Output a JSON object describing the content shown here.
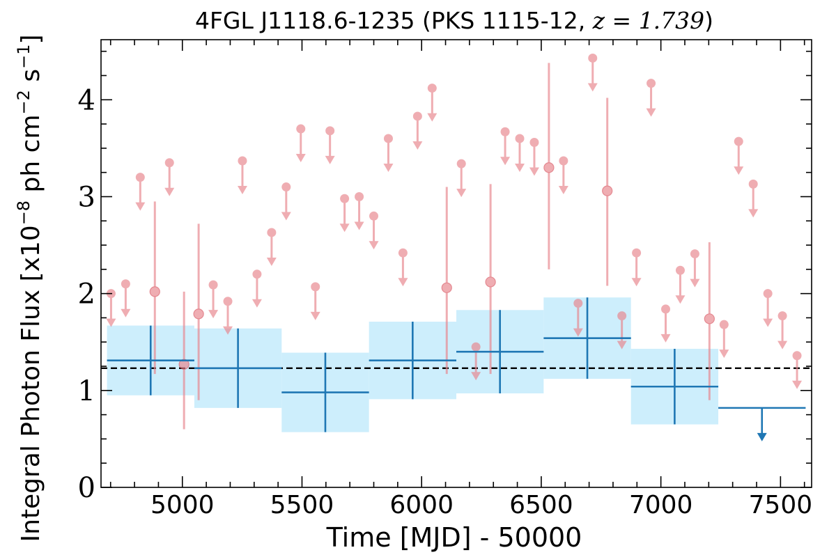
{
  "chart_data": {
    "type": "scatter",
    "title_main": "4FGL J1118.6-1235 (PKS 1115-12, ",
    "title_z": "z = 1.739",
    "title_close": ")",
    "xlabel": "Time [MJD] - 50000",
    "ylabel_main": "Integral Photon Flux [x10",
    "ylabel_exp1": "−8",
    "ylabel_mid": " ph cm",
    "ylabel_exp2": "−2",
    "ylabel_s": " s",
    "ylabel_exp3": "−1",
    "ylabel_close": "]",
    "xlim": [
      4660,
      7630
    ],
    "ylim": [
      0,
      4.62
    ],
    "xticks": [
      5000,
      5500,
      6000,
      6500,
      7000,
      7500
    ],
    "yticks": [
      0,
      1,
      2,
      3,
      4
    ],
    "mean_flux": 1.23,
    "colors": {
      "short_bins": "#e8878f",
      "long_bins": "#1f77b4",
      "band": "#cdeefc",
      "mean_line": "#000000"
    },
    "series": [
      {
        "kind": "long_bins",
        "bins": [
          {
            "x_start": 4685,
            "x_end": 5050,
            "y": 1.31,
            "y_err": 0.36,
            "upper_limit": false
          },
          {
            "x_start": 5050,
            "x_end": 5415,
            "y": 1.23,
            "y_err": 0.41,
            "upper_limit": false
          },
          {
            "x_start": 5415,
            "x_end": 5780,
            "y": 0.98,
            "y_err": 0.41,
            "upper_limit": false
          },
          {
            "x_start": 5780,
            "x_end": 6145,
            "y": 1.31,
            "y_err": 0.4,
            "upper_limit": false
          },
          {
            "x_start": 6145,
            "x_end": 6510,
            "y": 1.4,
            "y_err": 0.43,
            "upper_limit": false
          },
          {
            "x_start": 6510,
            "x_end": 6875,
            "y": 1.54,
            "y_err": 0.42,
            "upper_limit": false
          },
          {
            "x_start": 6875,
            "x_end": 7240,
            "y": 1.04,
            "y_err": 0.39,
            "upper_limit": false
          },
          {
            "x_start": 7240,
            "x_end": 7605,
            "y": 0.82,
            "y_err": 0,
            "upper_limit": true
          }
        ]
      },
      {
        "kind": "short_bins",
        "points": [
          {
            "x": 4702,
            "y": 2.0,
            "upper_limit": true
          },
          {
            "x": 4763,
            "y": 2.1,
            "upper_limit": true
          },
          {
            "x": 4824,
            "y": 3.2,
            "upper_limit": true
          },
          {
            "x": 4885,
            "y": 2.02,
            "upper_limit": false,
            "y_low": 1.17,
            "y_high": 2.95
          },
          {
            "x": 4946,
            "y": 3.35,
            "upper_limit": true
          },
          {
            "x": 5007,
            "y": 1.27,
            "upper_limit": false,
            "y_low": 0.6,
            "y_high": 2.02
          },
          {
            "x": 5068,
            "y": 1.79,
            "upper_limit": false,
            "y_low": 0.9,
            "y_high": 2.72
          },
          {
            "x": 5129,
            "y": 2.09,
            "upper_limit": true
          },
          {
            "x": 5190,
            "y": 1.92,
            "upper_limit": true
          },
          {
            "x": 5251,
            "y": 3.37,
            "upper_limit": true
          },
          {
            "x": 5312,
            "y": 2.2,
            "upper_limit": true
          },
          {
            "x": 5373,
            "y": 2.63,
            "upper_limit": true
          },
          {
            "x": 5434,
            "y": 3.1,
            "upper_limit": true
          },
          {
            "x": 5495,
            "y": 3.7,
            "upper_limit": true
          },
          {
            "x": 5556,
            "y": 2.07,
            "upper_limit": true
          },
          {
            "x": 5617,
            "y": 3.68,
            "upper_limit": true
          },
          {
            "x": 5678,
            "y": 2.98,
            "upper_limit": true
          },
          {
            "x": 5739,
            "y": 3.0,
            "upper_limit": true
          },
          {
            "x": 5800,
            "y": 2.8,
            "upper_limit": true
          },
          {
            "x": 5861,
            "y": 3.6,
            "upper_limit": true
          },
          {
            "x": 5922,
            "y": 2.42,
            "upper_limit": true
          },
          {
            "x": 5983,
            "y": 3.83,
            "upper_limit": true
          },
          {
            "x": 6044,
            "y": 4.12,
            "upper_limit": true
          },
          {
            "x": 6105,
            "y": 2.06,
            "upper_limit": false,
            "y_low": 1.17,
            "y_high": 3.1
          },
          {
            "x": 6166,
            "y": 3.34,
            "upper_limit": true
          },
          {
            "x": 6227,
            "y": 1.45,
            "upper_limit": true
          },
          {
            "x": 6288,
            "y": 2.12,
            "upper_limit": false,
            "y_low": 1.17,
            "y_high": 3.13
          },
          {
            "x": 6349,
            "y": 3.67,
            "upper_limit": true
          },
          {
            "x": 6410,
            "y": 3.6,
            "upper_limit": true
          },
          {
            "x": 6471,
            "y": 3.56,
            "upper_limit": true
          },
          {
            "x": 6532,
            "y": 3.3,
            "upper_limit": false,
            "y_low": 2.25,
            "y_high": 4.38
          },
          {
            "x": 6593,
            "y": 3.37,
            "upper_limit": true
          },
          {
            "x": 6654,
            "y": 1.9,
            "upper_limit": true
          },
          {
            "x": 6715,
            "y": 4.43,
            "upper_limit": true
          },
          {
            "x": 6776,
            "y": 3.06,
            "upper_limit": false,
            "y_low": 2.08,
            "y_high": 4.02
          },
          {
            "x": 6837,
            "y": 1.77,
            "upper_limit": true
          },
          {
            "x": 6898,
            "y": 2.42,
            "upper_limit": true
          },
          {
            "x": 6959,
            "y": 4.17,
            "upper_limit": true
          },
          {
            "x": 7020,
            "y": 1.84,
            "upper_limit": true
          },
          {
            "x": 7081,
            "y": 2.24,
            "upper_limit": true
          },
          {
            "x": 7142,
            "y": 2.41,
            "upper_limit": true
          },
          {
            "x": 7203,
            "y": 1.74,
            "upper_limit": false,
            "y_low": 0.9,
            "y_high": 2.53
          },
          {
            "x": 7264,
            "y": 1.68,
            "upper_limit": true
          },
          {
            "x": 7325,
            "y": 3.57,
            "upper_limit": true
          },
          {
            "x": 7386,
            "y": 3.13,
            "upper_limit": true
          },
          {
            "x": 7447,
            "y": 2.0,
            "upper_limit": true
          },
          {
            "x": 7508,
            "y": 1.77,
            "upper_limit": true
          },
          {
            "x": 7569,
            "y": 1.36,
            "upper_limit": true
          }
        ]
      }
    ]
  }
}
